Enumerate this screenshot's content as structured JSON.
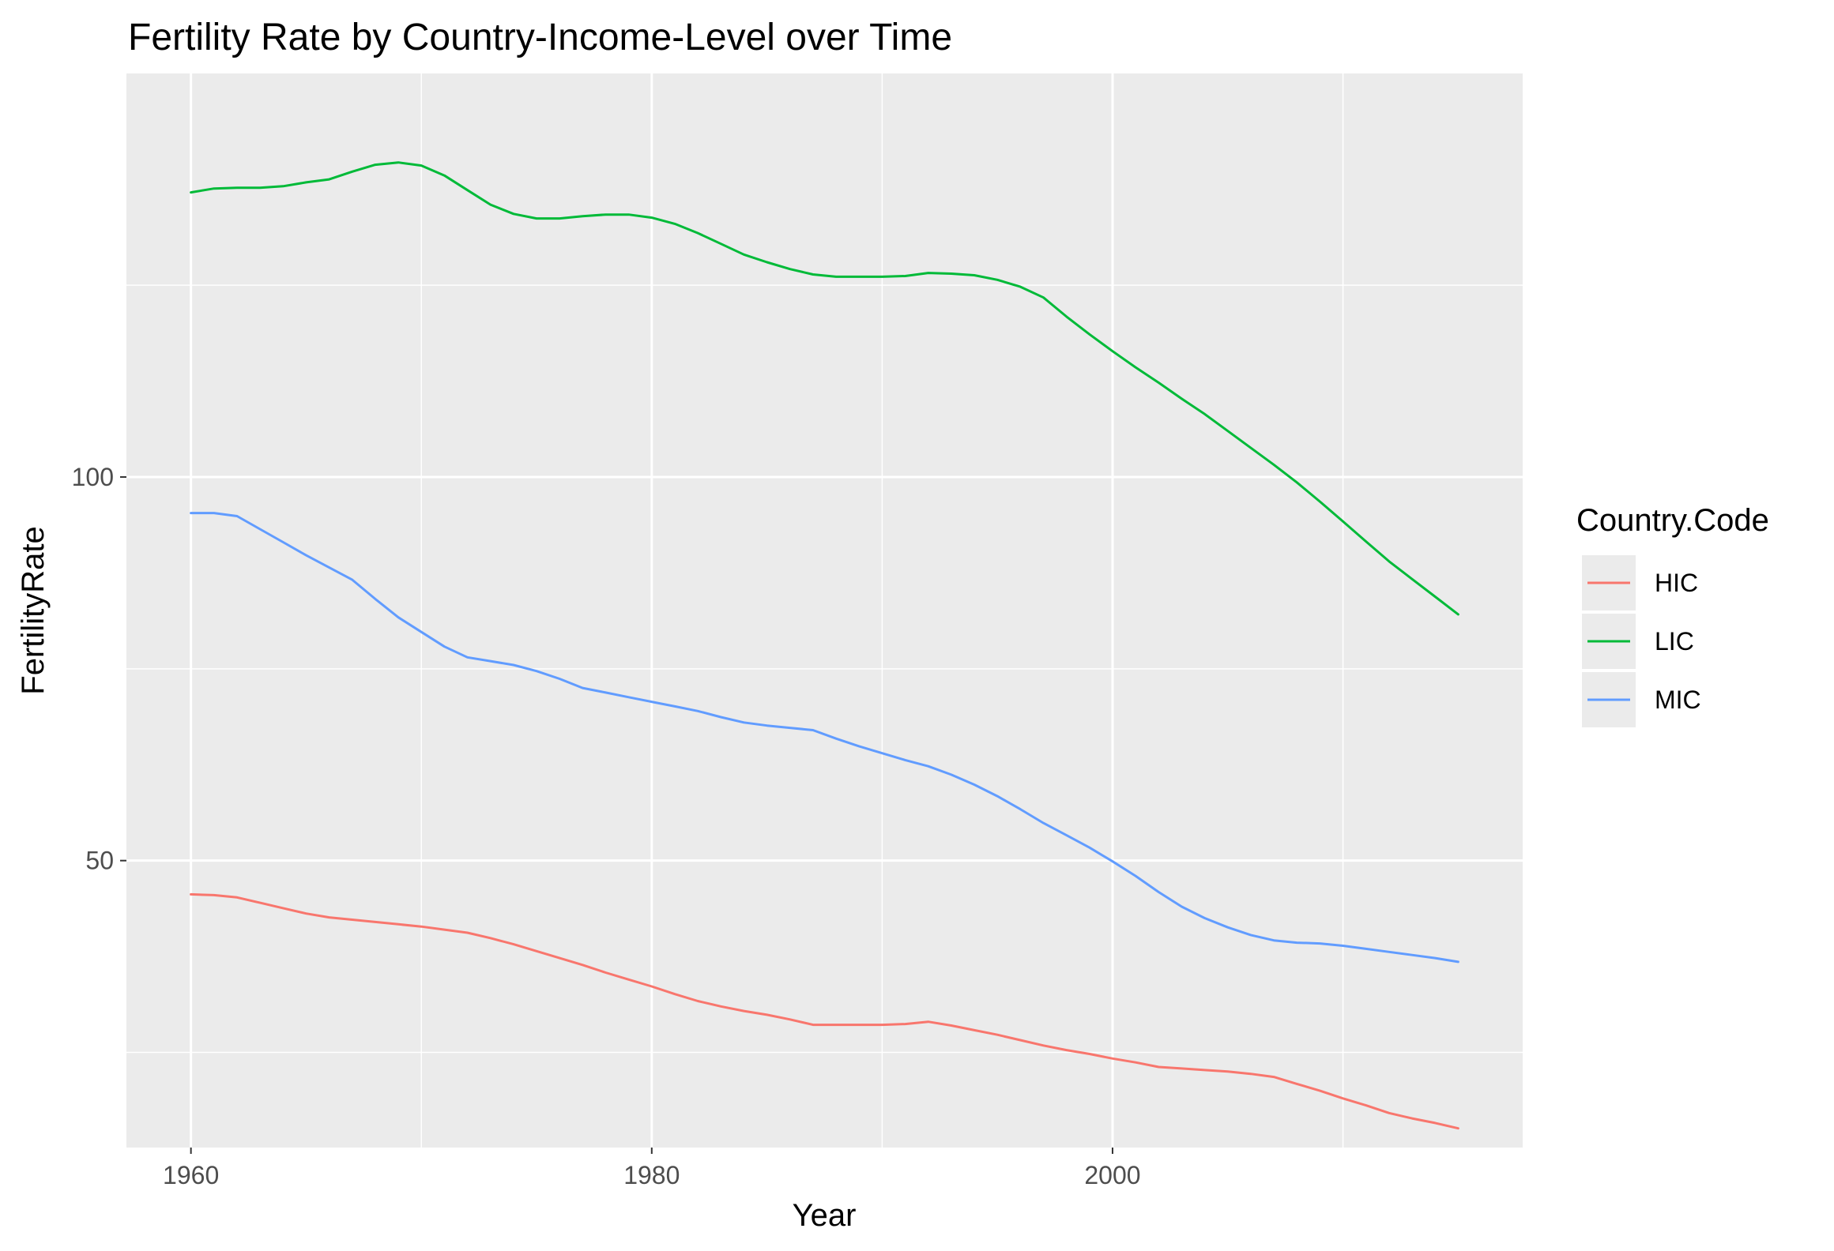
{
  "chart_data": {
    "type": "line",
    "title": "Fertility Rate by Country-Income-Level over Time",
    "xlabel": "Year",
    "ylabel": "FertilityRate",
    "xlim": [
      1957.2,
      2017.8
    ],
    "ylim": [
      12.6,
      152.6
    ],
    "x_ticks": [
      1960,
      1980,
      2000
    ],
    "x_minor": [
      1970,
      1990,
      2010
    ],
    "y_ticks": [
      50,
      100
    ],
    "y_minor": [
      25,
      75,
      125
    ],
    "grid": true,
    "panel_background": "#ebebeb",
    "legend": {
      "title": "Country.Code",
      "position": "right",
      "entries": [
        "HIC",
        "LIC",
        "MIC"
      ]
    },
    "series": [
      {
        "name": "HIC",
        "color": "#f8766d",
        "x": [
          1960,
          1961,
          1962,
          1963,
          1964,
          1965,
          1966,
          1967,
          1968,
          1969,
          1970,
          1971,
          1972,
          1973,
          1974,
          1975,
          1976,
          1977,
          1978,
          1979,
          1980,
          1981,
          1982,
          1983,
          1984,
          1985,
          1986,
          1987,
          1988,
          1989,
          1990,
          1991,
          1992,
          1993,
          1994,
          1995,
          1996,
          1997,
          1998,
          1999,
          2000,
          2001,
          2002,
          2003,
          2004,
          2005,
          2006,
          2007,
          2008,
          2009,
          2010,
          2011,
          2012,
          2013,
          2014,
          2015
        ],
        "values": [
          45.6,
          45.5,
          45.2,
          44.5,
          43.8,
          43.1,
          42.6,
          42.3,
          42.0,
          41.7,
          41.4,
          41.0,
          40.6,
          39.9,
          39.1,
          38.2,
          37.3,
          36.4,
          35.4,
          34.5,
          33.6,
          32.6,
          31.7,
          31.0,
          30.4,
          29.9,
          29.3,
          28.6,
          28.6,
          28.6,
          28.6,
          28.7,
          29.0,
          28.5,
          27.9,
          27.3,
          26.6,
          25.9,
          25.3,
          24.8,
          24.2,
          23.7,
          23.1,
          22.9,
          22.7,
          22.5,
          22.2,
          21.8,
          20.9,
          20.0,
          19.0,
          18.1,
          17.1,
          16.4,
          15.8,
          15.1
        ]
      },
      {
        "name": "LIC",
        "color": "#00ba38",
        "x": [
          1960,
          1961,
          1962,
          1963,
          1964,
          1965,
          1966,
          1967,
          1968,
          1969,
          1970,
          1971,
          1972,
          1973,
          1974,
          1975,
          1976,
          1977,
          1978,
          1979,
          1980,
          1981,
          1982,
          1983,
          1984,
          1985,
          1986,
          1987,
          1988,
          1989,
          1990,
          1991,
          1992,
          1993,
          1994,
          1995,
          1996,
          1997,
          1998,
          1999,
          2000,
          2001,
          2002,
          2003,
          2004,
          2005,
          2006,
          2007,
          2008,
          2009,
          2010,
          2011,
          2012,
          2013,
          2014,
          2015
        ],
        "values": [
          137.1,
          137.6,
          137.7,
          137.7,
          137.9,
          138.4,
          138.8,
          139.8,
          140.7,
          141.0,
          140.6,
          139.3,
          137.4,
          135.5,
          134.3,
          133.7,
          133.7,
          134.0,
          134.2,
          134.2,
          133.8,
          133.0,
          131.8,
          130.4,
          129.0,
          128.0,
          127.1,
          126.4,
          126.1,
          126.1,
          126.1,
          126.2,
          126.6,
          126.5,
          126.3,
          125.7,
          124.8,
          123.4,
          120.9,
          118.6,
          116.4,
          114.3,
          112.3,
          110.2,
          108.2,
          106.0,
          103.8,
          101.6,
          99.3,
          96.8,
          94.2,
          91.6,
          89.0,
          86.7,
          84.4,
          82.1
        ]
      },
      {
        "name": "MIC",
        "color": "#619cff",
        "x": [
          1960,
          1961,
          1962,
          1963,
          1964,
          1965,
          1966,
          1967,
          1968,
          1969,
          1970,
          1971,
          1972,
          1973,
          1974,
          1975,
          1976,
          1977,
          1978,
          1979,
          1980,
          1981,
          1982,
          1983,
          1984,
          1985,
          1986,
          1987,
          1988,
          1989,
          1990,
          1991,
          1992,
          1993,
          1994,
          1995,
          1996,
          1997,
          1998,
          1999,
          2000,
          2001,
          2002,
          2003,
          2004,
          2005,
          2006,
          2007,
          2008,
          2009,
          2010,
          2011,
          2012,
          2013,
          2014,
          2015
        ],
        "values": [
          95.3,
          95.3,
          94.9,
          93.2,
          91.5,
          89.8,
          88.2,
          86.6,
          84.1,
          81.7,
          79.8,
          77.9,
          76.5,
          76.0,
          75.5,
          74.7,
          73.7,
          72.5,
          71.9,
          71.3,
          70.7,
          70.1,
          69.5,
          68.7,
          68.0,
          67.6,
          67.3,
          67.0,
          65.9,
          64.9,
          64.0,
          63.1,
          62.3,
          61.2,
          59.9,
          58.4,
          56.7,
          54.9,
          53.3,
          51.7,
          49.9,
          48.0,
          45.9,
          44.0,
          42.5,
          41.3,
          40.3,
          39.6,
          39.3,
          39.2,
          38.9,
          38.5,
          38.1,
          37.7,
          37.3,
          36.8
        ]
      }
    ]
  }
}
